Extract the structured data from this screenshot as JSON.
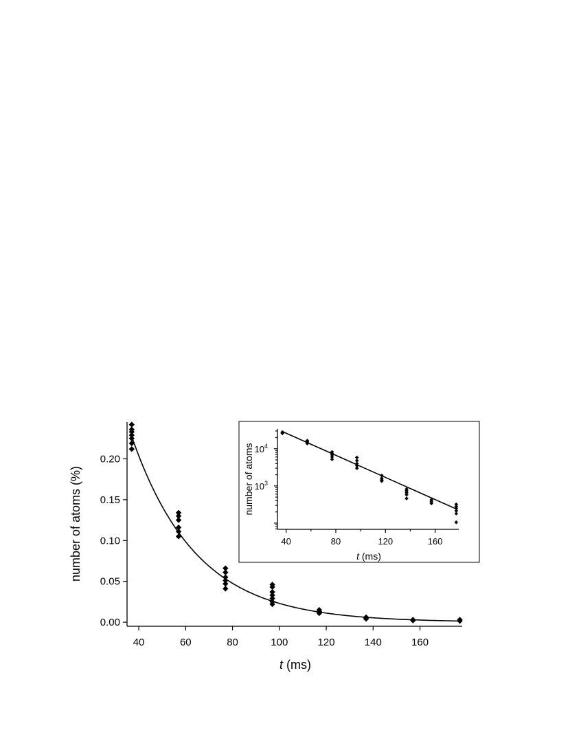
{
  "chart_data": [
    {
      "type": "scatter",
      "xlabel_italic": "t",
      "xlabel_rest": " (ms)",
      "ylabel": "number of atoms (%)",
      "xlim": [
        35,
        178
      ],
      "ylim": [
        -0.005,
        0.245
      ],
      "xticks": [
        40,
        60,
        80,
        100,
        120,
        140,
        160
      ],
      "yticks": [
        0.0,
        0.05,
        0.1,
        0.15,
        0.2
      ],
      "ytick_labels": [
        "0.00",
        "0.05",
        "0.10",
        "0.15",
        "0.20"
      ],
      "grid": false,
      "series": [
        {
          "points": [
            {
              "x": 37,
              "y": 0.242
            },
            {
              "x": 37,
              "y": 0.236
            },
            {
              "x": 37,
              "y": 0.233
            },
            {
              "x": 37,
              "y": 0.229
            },
            {
              "x": 37,
              "y": 0.225
            },
            {
              "x": 37,
              "y": 0.219
            },
            {
              "x": 37,
              "y": 0.212
            },
            {
              "x": 57,
              "y": 0.134
            },
            {
              "x": 57,
              "y": 0.13
            },
            {
              "x": 57,
              "y": 0.125
            },
            {
              "x": 57,
              "y": 0.116
            },
            {
              "x": 57,
              "y": 0.111
            },
            {
              "x": 57,
              "y": 0.105
            },
            {
              "x": 77,
              "y": 0.066
            },
            {
              "x": 77,
              "y": 0.061
            },
            {
              "x": 77,
              "y": 0.055
            },
            {
              "x": 77,
              "y": 0.051
            },
            {
              "x": 77,
              "y": 0.047
            },
            {
              "x": 77,
              "y": 0.041
            },
            {
              "x": 97,
              "y": 0.046
            },
            {
              "x": 97,
              "y": 0.043
            },
            {
              "x": 97,
              "y": 0.037
            },
            {
              "x": 97,
              "y": 0.033
            },
            {
              "x": 97,
              "y": 0.029
            },
            {
              "x": 97,
              "y": 0.025
            },
            {
              "x": 97,
              "y": 0.022
            },
            {
              "x": 117,
              "y": 0.015
            },
            {
              "x": 117,
              "y": 0.013
            },
            {
              "x": 117,
              "y": 0.011
            },
            {
              "x": 137,
              "y": 0.006
            },
            {
              "x": 137,
              "y": 0.005
            },
            {
              "x": 137,
              "y": 0.004
            },
            {
              "x": 157,
              "y": 0.003
            },
            {
              "x": 157,
              "y": 0.002
            },
            {
              "x": 177,
              "y": 0.003
            },
            {
              "x": 177,
              "y": 0.0015
            }
          ]
        }
      ],
      "fit": {
        "type": "exponential",
        "amplitude": 0.2273,
        "t0": 37,
        "tau": 27.5,
        "x_range": [
          37,
          177
        ]
      }
    },
    {
      "type": "scatter",
      "inset": true,
      "xlabel_italic": "t",
      "xlabel_rest": " (ms)",
      "ylabel": "number of atoms",
      "yscale": "log",
      "xlim": [
        33,
        179
      ],
      "ylim": [
        68,
        34000
      ],
      "xticks": [
        40,
        80,
        120,
        160
      ],
      "yticks": [
        1000,
        10000
      ],
      "ytick_labels": [
        {
          "base": "10",
          "exp": "3"
        },
        {
          "base": "10",
          "exp": "4"
        }
      ],
      "grid": false,
      "series": [
        {
          "points": [
            {
              "x": 37,
              "y": 28000
            },
            {
              "x": 37,
              "y": 27000
            },
            {
              "x": 37,
              "y": 26000
            },
            {
              "x": 57,
              "y": 16500
            },
            {
              "x": 57,
              "y": 15500
            },
            {
              "x": 57,
              "y": 14500
            },
            {
              "x": 57,
              "y": 13800
            },
            {
              "x": 77,
              "y": 8200
            },
            {
              "x": 77,
              "y": 7400
            },
            {
              "x": 77,
              "y": 6800
            },
            {
              "x": 77,
              "y": 6000
            },
            {
              "x": 77,
              "y": 5200
            },
            {
              "x": 97,
              "y": 5800
            },
            {
              "x": 97,
              "y": 4800
            },
            {
              "x": 97,
              "y": 4000
            },
            {
              "x": 97,
              "y": 3500
            },
            {
              "x": 97,
              "y": 3000
            },
            {
              "x": 117,
              "y": 1900
            },
            {
              "x": 117,
              "y": 1600
            },
            {
              "x": 117,
              "y": 1450
            },
            {
              "x": 117,
              "y": 1350
            },
            {
              "x": 137,
              "y": 820
            },
            {
              "x": 137,
              "y": 740
            },
            {
              "x": 137,
              "y": 660
            },
            {
              "x": 137,
              "y": 580
            },
            {
              "x": 137,
              "y": 460
            },
            {
              "x": 157,
              "y": 420
            },
            {
              "x": 157,
              "y": 380
            },
            {
              "x": 157,
              "y": 340
            },
            {
              "x": 177,
              "y": 320
            },
            {
              "x": 177,
              "y": 280
            },
            {
              "x": 177,
              "y": 250
            },
            {
              "x": 177,
              "y": 215
            },
            {
              "x": 177,
              "y": 180
            },
            {
              "x": 177,
              "y": 105
            }
          ]
        }
      ],
      "fit": {
        "type": "exponential",
        "amplitude": 29000,
        "t0": 37,
        "tau": 29.2,
        "x_range": [
          37,
          177
        ]
      }
    }
  ]
}
